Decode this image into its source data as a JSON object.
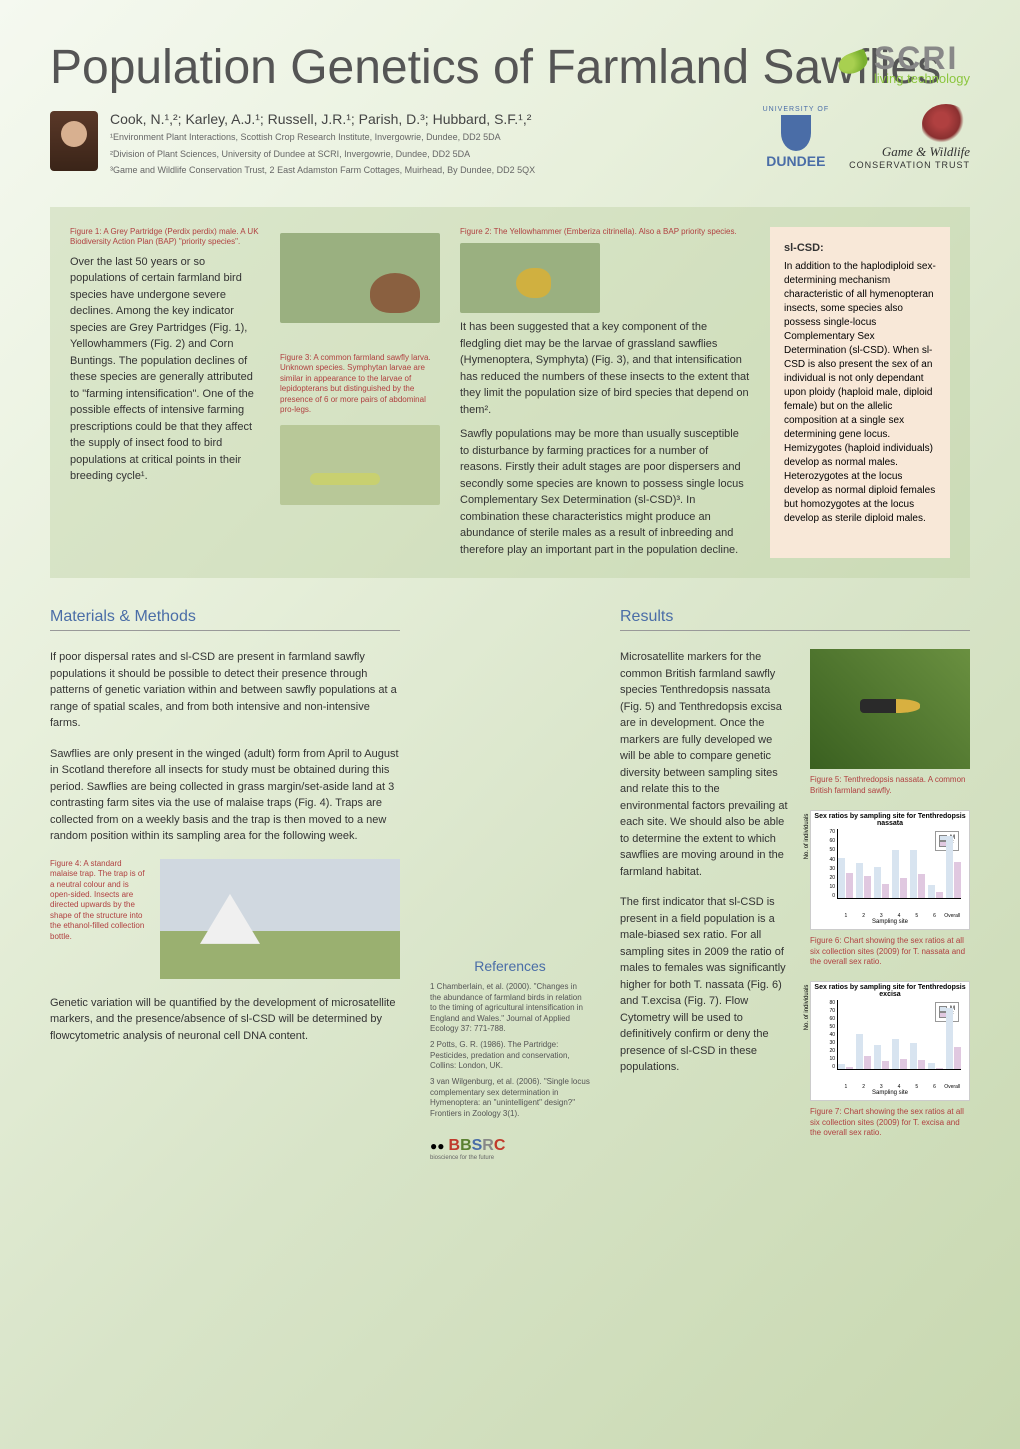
{
  "header": {
    "title": "Population Genetics of Farmland Sawflies",
    "authors": "Cook, N.¹,²; Karley, A.J.¹; Russell, J.R.¹; Parish, D.³; Hubbard, S.F.¹,²",
    "affiliations": [
      "¹Environment Plant Interactions, Scottish Crop Research Institute, Invergowrie, Dundee, DD2 5DA",
      "²Division of Plant Sciences, University of Dundee at SCRI, Invergowrie, Dundee, DD2 5DA",
      "³Game and Wildlife Conservation Trust, 2 East Adamston Farm Cottages, Muirhead, By Dundee, DD2 5QX"
    ],
    "scri": "SCRI",
    "scri_tag": "living technology",
    "dundee": "DUNDEE",
    "university_of": "UNIVERSITY OF",
    "gwct_l1": "Game & Wildlife",
    "gwct_l2": "CONSERVATION TRUST"
  },
  "intro": {
    "fig1_caption": "Figure 1: A Grey Partridge (Perdix perdix) male. A UK Biodiversity Action Plan (BAP) \"priority species\".",
    "col1": "Over the last 50 years or so populations of certain farmland bird species have undergone severe declines. Among the key indicator species are Grey Partridges (Fig. 1), Yellowhammers (Fig. 2) and Corn Buntings. The population declines of these species are generally attributed to \"farming intensification\". One of the possible effects of intensive farming prescriptions could be that they affect the supply of insect food to bird populations at critical points in their breeding cycle¹.",
    "fig2_caption": "Figure 2: The Yellowhammer (Emberiza citrinella). Also a BAP priority species.",
    "fig3_caption": "Figure 3: A common farmland sawfly larva. Unknown species. Symphytan larvae are similar in appearance to the larvae of lepidopterans but distinguished by the presence of 6 or more pairs of abdominal pro-legs.",
    "col2a": "It has been suggested that a key component of the fledgling diet may be the larvae of grassland sawflies (Hymenoptera, Symphyta) (Fig. 3), and that intensification has reduced the numbers of these insects to the extent that they limit the population size of bird species that depend on them².",
    "col2b": "Sawfly populations may be more than usually susceptible to disturbance by farming practices for a number of reasons. Firstly their adult stages are poor dispersers and secondly some species are known to possess single locus Complementary Sex Determination (sl-CSD)³. In combination these characteristics might produce an abundance of sterile males as a result of inbreeding and therefore play an important part in the population decline.",
    "slcsd_title": "sl-CSD:",
    "slcsd_body": "In addition to the haplodiploid sex-determining mechanism characteristic of all hymenopteran insects, some species also possess single-locus Complementary Sex Determination (sl-CSD). When sl-CSD is also present the sex of an individual is not only dependant upon ploidy (haploid male, diploid female) but on the allelic composition at a single sex determining gene locus. Hemizygotes (haploid individuals) develop as normal males. Heterozygotes at the locus develop as normal diploid females but homozygotes at the locus develop as sterile diploid males."
  },
  "methods": {
    "heading": "Materials & Methods",
    "p1": "If poor dispersal rates and sl-CSD are present in farmland sawfly populations it should be possible to detect their presence through patterns of genetic variation within and between sawfly populations at a range of spatial scales, and from both intensive and non-intensive farms.",
    "p2": "Sawflies are only present in the winged (adult) form from April to August in Scotland therefore all insects for study must be obtained during this period. Sawflies are being collected in grass margin/set-aside land at 3 contrasting farm sites via the use of malaise traps (Fig. 4). Traps are collected from on a weekly basis and the trap is then moved to a new random position within its sampling area for the following week.",
    "fig4_caption": "Figure 4: A standard malaise trap. The trap is of a neutral colour and is open-sided. Insects are directed upwards by the shape of the structure into the ethanol-filled collection bottle.",
    "p3": "Genetic variation will be quantified by the development of microsatellite markers, and the presence/absence of sl-CSD will be determined by flowcytometric analysis of neuronal cell DNA content."
  },
  "references": {
    "heading": "References",
    "items": [
      "1 Chamberlain, et al. (2000). \"Changes in the abundance of farmland birds in relation to the timing of agricultural intensification in England and Wales.\" Journal of Applied Ecology 37: 771-788.",
      "2 Potts, G. R. (1986). The Partridge: Pesticides, predation and conservation, Collins: London, UK.",
      "3 van Wilgenburg, et al. (2006). \"Single locus complementary sex determination in Hymenoptera: an \"unintelligent\" design?\" Frontiers in Zoology 3(1)."
    ],
    "bbsrc": "BBSRC",
    "bbsrc_tag": "bioscience for the future"
  },
  "results": {
    "heading": "Results",
    "p1": "Microsatellite markers for the common British farmland sawfly species Tenthredopsis nassata (Fig. 5) and Tenthredopsis excisa are in development. Once the markers are fully developed we will be able to compare genetic diversity between sampling sites and relate this to the environmental factors prevailing at each site. We should also be able to determine the extent to which sawflies are moving around in the farmland habitat.",
    "p2": "The first indicator that sl-CSD is present in a field population is a male-biased sex ratio. For all sampling sites in 2009 the ratio of males to females was significantly higher for both T. nassata (Fig. 6) and T.excisa (Fig. 7). Flow Cytometry will be used to definitively confirm or deny the presence of sl-CSD in these populations.",
    "fig5_caption": "Figure 5: Tenthredopsis nassata. A common British farmland sawfly.",
    "fig6": {
      "caption": "Figure 6: Chart showing the sex ratios at all six collection sites (2009) for T. nassata and the overall sex ratio.",
      "title": "Sex ratios by sampling site for Tenthredopsis nassata",
      "ylabel": "No. of individuals",
      "xlabel": "Sampling site",
      "ylim": [
        0,
        70
      ],
      "ytick_step": 10,
      "categories": [
        "1",
        "2",
        "3",
        "4",
        "5",
        "6",
        "Overall"
      ],
      "series": [
        {
          "name": "M",
          "color": "#d8e4f0",
          "values": [
            40,
            35,
            31,
            48,
            48,
            13,
            62
          ]
        },
        {
          "name": "F",
          "color": "#e0c8e0",
          "values": [
            25,
            22,
            14,
            20,
            24,
            6,
            36
          ]
        }
      ],
      "legend_pos": "right"
    },
    "fig7": {
      "caption": "Figure 7: Chart showing the sex ratios at all six collection sites (2009) for T. excisa and the overall sex ratio.",
      "title": "Sex ratios by sampling site for Tenthredopsis excisa",
      "ylabel": "No. of individuals",
      "xlabel": "Sampling site",
      "ylim": [
        0,
        80
      ],
      "ytick_step": 10,
      "categories": [
        "1",
        "2",
        "3",
        "4",
        "5",
        "6",
        "Overall"
      ],
      "series": [
        {
          "name": "M",
          "color": "#d8e4f0",
          "values": [
            6,
            40,
            28,
            35,
            30,
            7,
            70
          ]
        },
        {
          "name": "F",
          "color": "#e0c8e0",
          "values": [
            3,
            15,
            10,
            12,
            11,
            2,
            26
          ]
        }
      ],
      "legend_pos": "right"
    }
  }
}
